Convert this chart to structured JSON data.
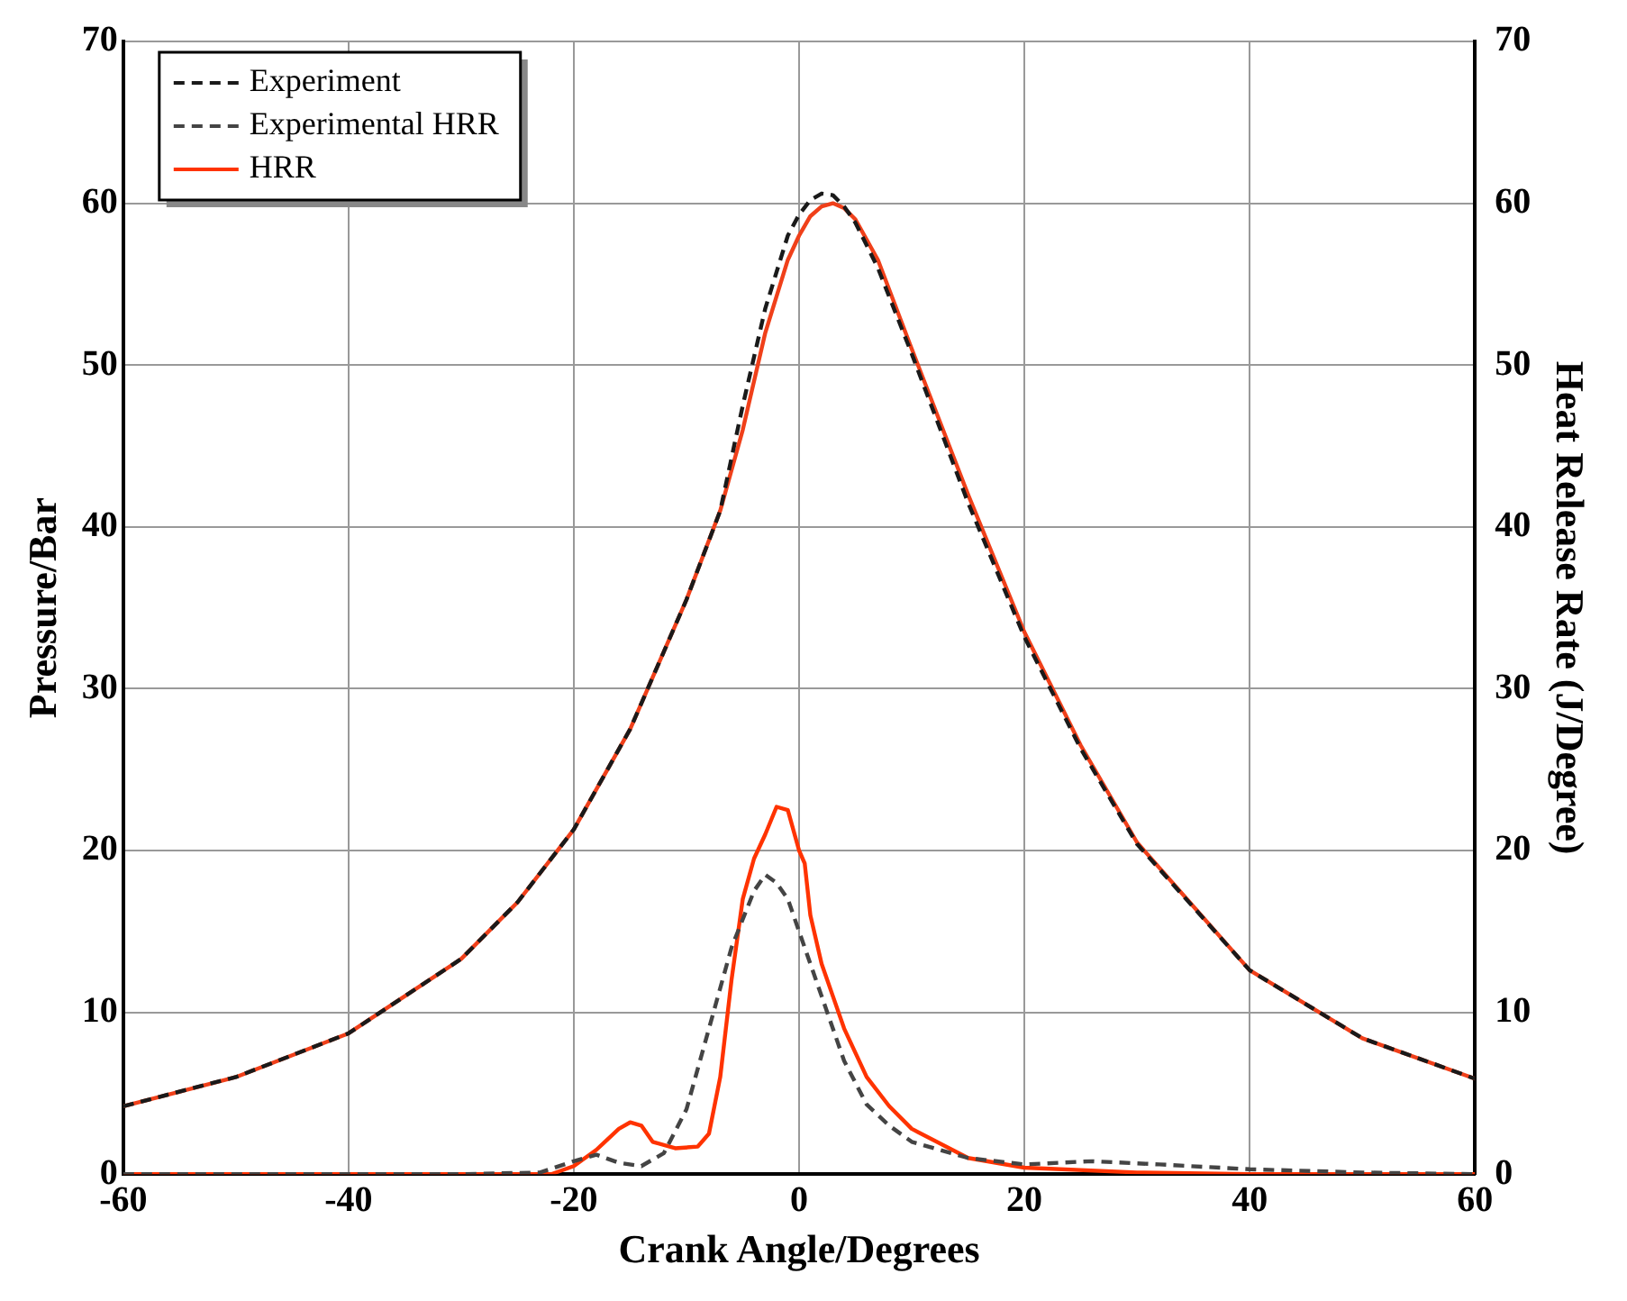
{
  "chart_data": {
    "type": "line",
    "xlabel": "Crank Angle/Degrees",
    "ylabel": "Pressure/Bar",
    "y2label": "Heat Release Rate (J/Degree)",
    "xlim": [
      -60,
      60
    ],
    "xticks": [
      -60,
      -40,
      -20,
      0,
      20,
      40,
      60
    ],
    "ylim": [
      0,
      70
    ],
    "yticks": [
      0,
      10,
      20,
      30,
      40,
      50,
      60,
      70
    ],
    "y2lim": [
      0,
      70
    ],
    "y2ticks": [
      0,
      10,
      20,
      30,
      40,
      50,
      60,
      70
    ],
    "grid": true,
    "legend": "top left",
    "marker": "none",
    "series": [
      {
        "name": "Experiment",
        "color": "#1a1a1a",
        "line_style": "dashed",
        "x": [
          -60,
          -50,
          -40,
          -30,
          -25,
          -20,
          -15,
          -10,
          -7,
          -5,
          -3,
          -1,
          0,
          1,
          2,
          3,
          4,
          5,
          7,
          10,
          15,
          20,
          25,
          30,
          40,
          50,
          60
        ],
        "values": [
          4.2,
          6.0,
          8.7,
          13.3,
          16.8,
          21.3,
          27.5,
          35.5,
          41,
          47.5,
          53.5,
          58,
          59.3,
          60.2,
          60.6,
          60.5,
          59.8,
          58.8,
          56,
          50.7,
          41.5,
          33.2,
          26.3,
          20.4,
          12.6,
          8.4,
          5.9
        ]
      },
      {
        "color": "#f0401a",
        "line_style": "solid",
        "x": [
          -60,
          -50,
          -40,
          -30,
          -25,
          -20,
          -15,
          -10,
          -7,
          -5,
          -3,
          -1,
          0,
          1,
          2,
          3,
          4,
          5,
          7,
          10,
          15,
          20,
          25,
          30,
          40,
          50,
          60
        ],
        "values": [
          4.2,
          6.0,
          8.7,
          13.3,
          16.8,
          21.3,
          27.5,
          35.5,
          41,
          46,
          52,
          56.5,
          58,
          59.2,
          59.8,
          60,
          59.7,
          59,
          56.5,
          51,
          42,
          33.5,
          26.5,
          20.5,
          12.6,
          8.4,
          5.9
        ]
      },
      {
        "name": "Experimental HRR",
        "color": "#444444",
        "line_style": "dashed",
        "axis": "y2",
        "x": [
          -60,
          -30,
          -23,
          -20,
          -18,
          -16,
          -14,
          -12,
          -10,
          -8,
          -6,
          -4,
          -3,
          -2,
          -1,
          0,
          2,
          4,
          6,
          8,
          10,
          15,
          20,
          26,
          32,
          40,
          50,
          60
        ],
        "values": [
          0,
          0,
          0.1,
          0.8,
          1.2,
          0.7,
          0.5,
          1.3,
          4,
          9,
          14,
          17.5,
          18.5,
          18,
          17,
          15,
          11,
          7,
          4.3,
          3,
          2,
          1,
          0.6,
          0.8,
          0.6,
          0.3,
          0.1,
          0
        ]
      },
      {
        "name": "HRR",
        "color": "#ff3300",
        "line_style": "solid",
        "axis": "y2",
        "x": [
          -60,
          -22,
          -20,
          -18,
          -16,
          -15,
          -14,
          -13,
          -11,
          -9,
          -8,
          -7,
          -6,
          -5,
          -4,
          -3,
          -2,
          -1,
          0,
          0.5,
          1,
          2,
          3,
          4,
          6,
          8,
          10,
          15,
          20,
          30,
          40,
          60
        ],
        "values": [
          0,
          0,
          0.5,
          1.5,
          2.8,
          3.2,
          3,
          2,
          1.6,
          1.7,
          2.5,
          6,
          12,
          17,
          19.5,
          21,
          22.7,
          22.5,
          20,
          19.2,
          16,
          13,
          11,
          9,
          6,
          4.2,
          2.8,
          1,
          0.4,
          0.1,
          0,
          0
        ]
      }
    ]
  }
}
